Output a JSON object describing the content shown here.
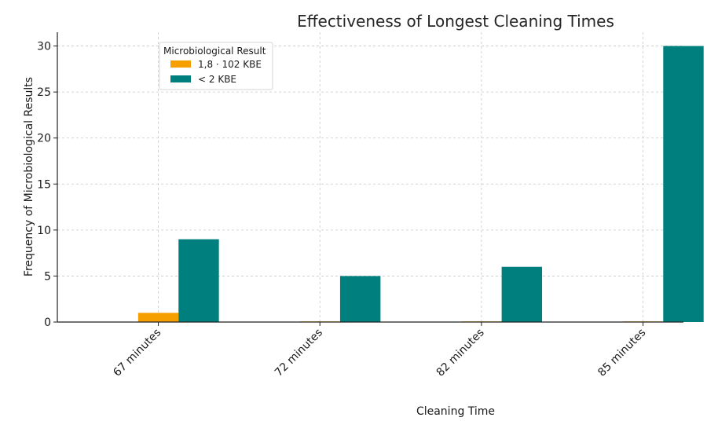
{
  "chart_data": {
    "type": "bar",
    "title": "Effectiveness of Longest Cleaning Times",
    "xlabel": "Cleaning Time",
    "ylabel": "Frequency of Microbiological Results",
    "categories": [
      "67 minutes",
      "72 minutes",
      "82 minutes",
      "85 minutes"
    ],
    "series": [
      {
        "name": "1,8 · 102 KBE",
        "values": [
          1,
          0,
          0,
          0
        ],
        "color": "#f5a000"
      },
      {
        "name": "< 2 KBE",
        "values": [
          9,
          5,
          6,
          30
        ],
        "color": "#007f7f"
      }
    ],
    "ylim": [
      0,
      31.5
    ],
    "yticks": [
      0,
      5,
      10,
      15,
      20,
      25,
      30
    ],
    "grid": true,
    "legend": {
      "title": "Microbiological Result",
      "placement": "upper-left"
    }
  }
}
